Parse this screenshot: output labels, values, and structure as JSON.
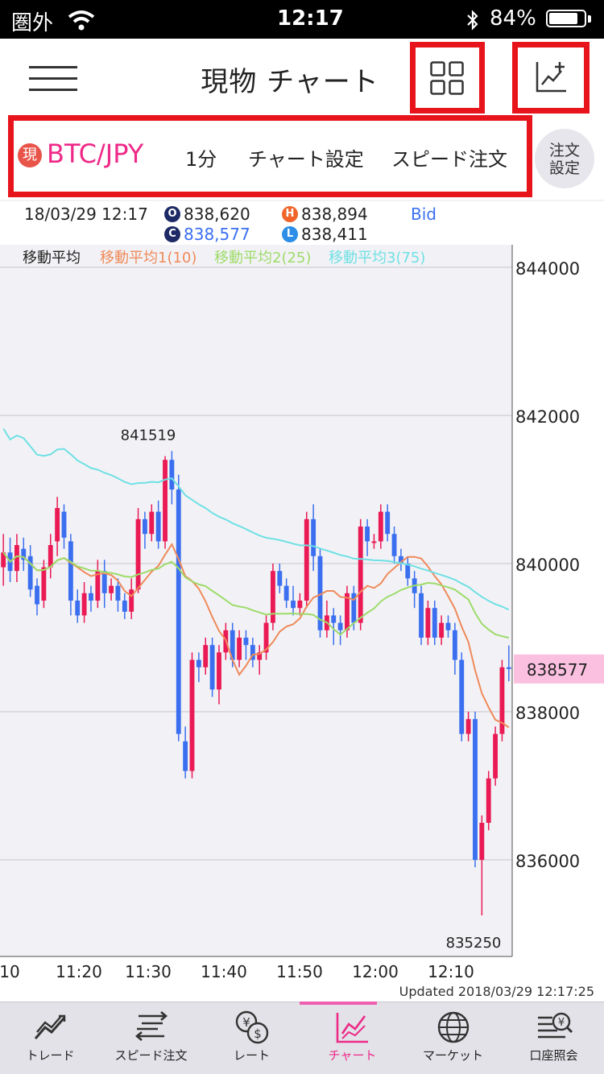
{
  "status_bar": {
    "carrier": "圏外",
    "time": "12:17",
    "battery": "84%",
    "battery_level": 0.84
  },
  "header": {
    "title": "現物 チャート"
  },
  "toolbar": {
    "badge": "現",
    "pair": "BTC/JPY",
    "interval": "1分",
    "chart_settings": "チャート設定",
    "speed_order": "スピード注文",
    "order_settings_1": "注文",
    "order_settings_2": "設定"
  },
  "ohlc": {
    "datetime": "18/03/29 12:17",
    "open": "838,620",
    "high": "838,894",
    "close": "838,577",
    "low": "838,411",
    "price_type": "Bid",
    "badges": {
      "o": "O",
      "h": "H",
      "c": "C",
      "l": "L"
    }
  },
  "ma_legend": {
    "base": "移動平均",
    "ma1": "移動平均1(10)",
    "ma2": "移動平均2(25)",
    "ma3": "移動平均3(75)"
  },
  "colors": {
    "accent": "#ee2a88",
    "up": "#ea1a55",
    "down": "#3b6ff0",
    "ma1": "#ef8a5a",
    "ma2": "#9edb6a",
    "ma3": "#6fe0e4",
    "highlight_box": "#e8141c"
  },
  "chart_data": {
    "type": "candlestick",
    "ylim": [
      834800,
      845500
    ],
    "y_ticks": [
      836000,
      838000,
      840000,
      842000,
      844000
    ],
    "x_ticks": [
      "10",
      "11:20",
      "11:30",
      "11:40",
      "11:50",
      "12:00",
      "12:10"
    ],
    "current_price": "838577",
    "annotations": [
      {
        "text": "841519",
        "value": 841519
      },
      {
        "text": "835250",
        "value": 835250
      }
    ],
    "series": [
      {
        "name": "移動平均1(10)"
      },
      {
        "name": "移動平均2(25)"
      },
      {
        "name": "移動平均3(75)"
      }
    ]
  },
  "updated": "Updated  2018/03/29 12:17:25",
  "tabs": [
    {
      "label": "トレード",
      "icon": "trade-icon"
    },
    {
      "label": "スピード注文",
      "icon": "speed-order-icon"
    },
    {
      "label": "レート",
      "icon": "rate-icon"
    },
    {
      "label": "チャート",
      "icon": "chart-icon",
      "active": true
    },
    {
      "label": "マーケット",
      "icon": "market-icon"
    },
    {
      "label": "口座照会",
      "icon": "account-icon"
    }
  ]
}
